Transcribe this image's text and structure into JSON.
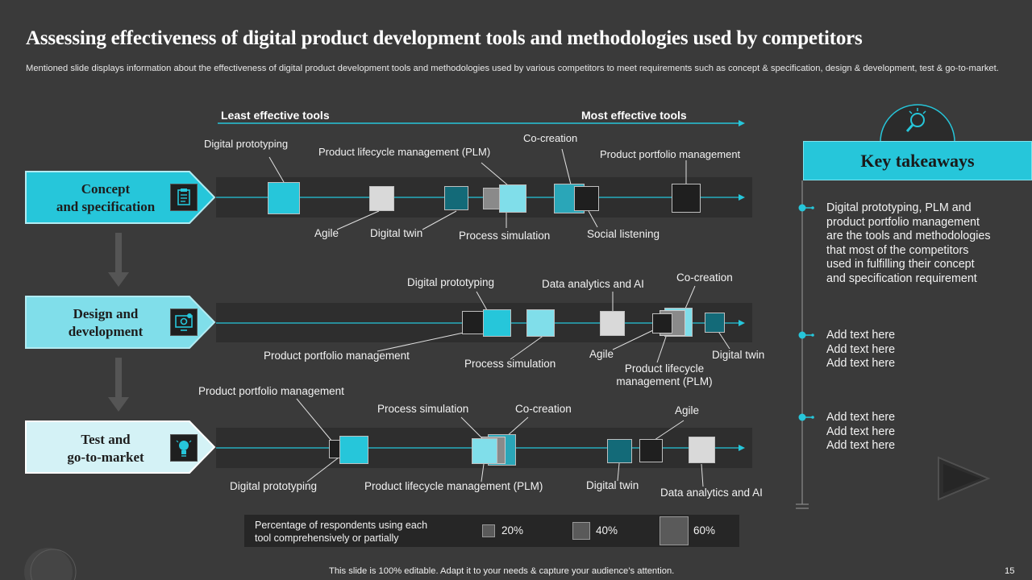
{
  "title": "Assessing effectiveness of digital product development tools and methodologies used by competitors",
  "subtitle": "Mentioned slide displays information about the effectiveness of digital product  development tools and methodologies used by various competitors to meet requirements such as concept & specification, design & development, test & go-to-market.",
  "scale": {
    "least": "Least effective tools",
    "most": "Most effective tools"
  },
  "stages": [
    {
      "line1": "Concept",
      "line2": "and specification",
      "icon": "clipboard-icon"
    },
    {
      "line1": "Design and",
      "line2": "development",
      "icon": "gear-screen-icon"
    },
    {
      "line1": "Test and",
      "line2": "go-to-market",
      "icon": "lightbulb-icon"
    }
  ],
  "row1": {
    "digital_prototyping": "Digital prototyping",
    "plm": "Product lifecycle management  (PLM)",
    "co_creation": "Co-creation",
    "portfolio": "Product portfolio  management",
    "agile": "Agile",
    "digital_twin": "Digital twin",
    "process_simulation": "Process simulation",
    "social_listening": "Social listening"
  },
  "row2": {
    "digital_prototyping": "Digital prototyping",
    "data_analytics": "Data analytics and AI",
    "co_creation": "Co-creation",
    "portfolio": "Product portfolio management",
    "process_simulation": "Process simulation",
    "agile": "Agile",
    "plm_line1": "Product lifecycle",
    "plm_line2": "management (PLM)",
    "digital_twin": "Digital twin"
  },
  "row3": {
    "portfolio": "Product portfolio management",
    "process_simulation": "Process simulation",
    "co_creation": "Co-creation",
    "agile": "Agile",
    "digital_prototyping": "Digital prototyping",
    "plm": "Product lifecycle management (PLM)",
    "digital_twin": "Digital twin",
    "data_analytics": "Data analytics and AI"
  },
  "key_takeaways": {
    "title": "Key takeaways",
    "icon": "idea-search-icon",
    "points": [
      [
        "Digital prototyping, PLM and",
        "product portfolio management",
        "are the tools and methodologies",
        "that  most of the competitors",
        "used in fulfilling their concept",
        "and specification requirement"
      ],
      [
        "Add text here",
        "Add text here",
        "Add text here"
      ],
      [
        "Add text here",
        "Add text here",
        "Add text here"
      ]
    ]
  },
  "legend": {
    "label_line1": "Percentage of respondents using each",
    "label_line2": "tool comprehensively  or partially",
    "items": [
      "20%",
      "40%",
      "60%"
    ]
  },
  "colors": {
    "cyan": "#26c6da",
    "light_cyan": "#80deea",
    "dark_teal": "#136a78",
    "background": "#3a3a3a"
  },
  "footer": "This slide is 100% editable. Adapt it to your needs & capture your audience’s attention.",
  "page_number": "15"
}
